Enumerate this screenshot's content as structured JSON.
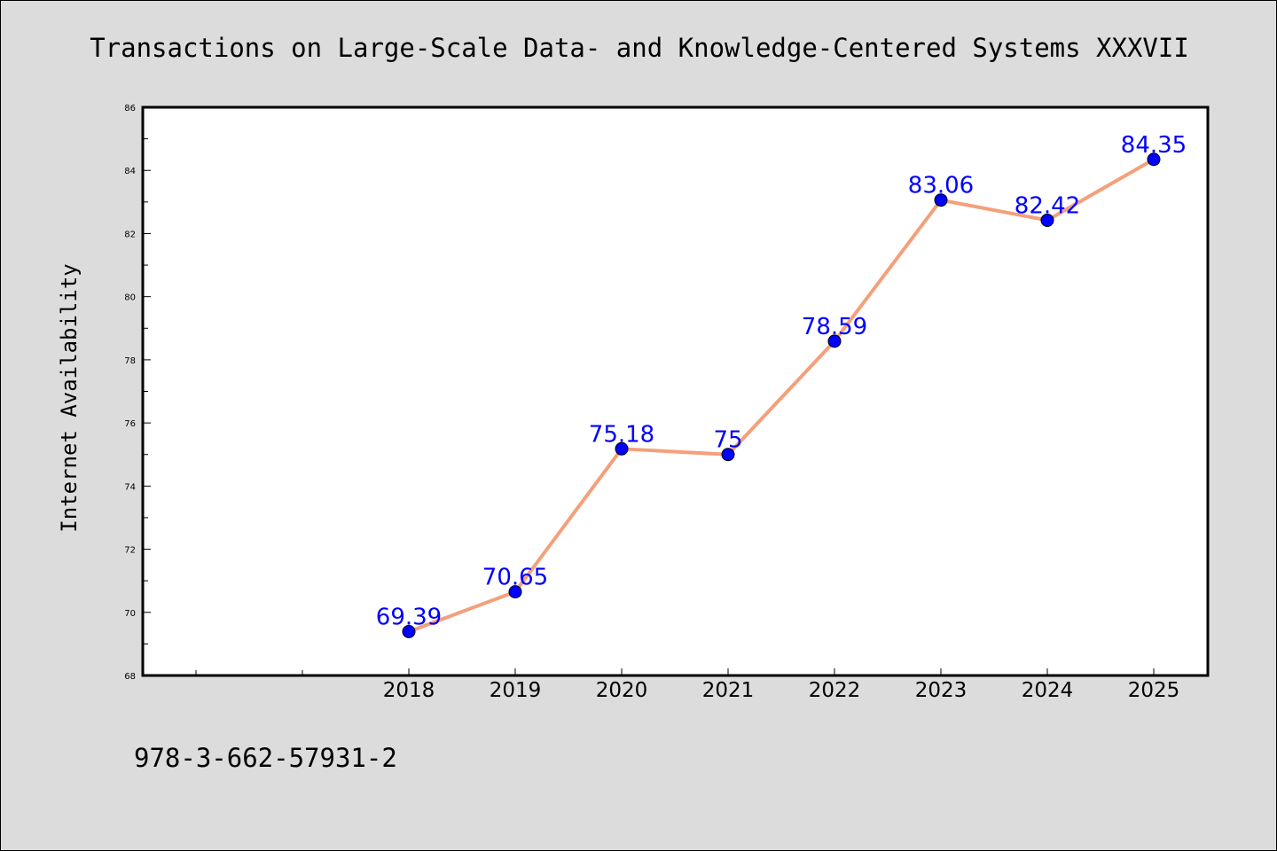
{
  "chart_data": {
    "type": "line",
    "title": "Transactions on Large-Scale Data- and Knowledge-Centered Systems XXXVII",
    "xlabel": "",
    "ylabel": "Internet Availability",
    "categories": [
      "2018",
      "2019",
      "2020",
      "2021",
      "2022",
      "2023",
      "2024",
      "2025"
    ],
    "series": [
      {
        "values": [
          69.39,
          70.65,
          75.18,
          75,
          78.59,
          83.06,
          82.42,
          84.35
        ],
        "data_labels": [
          "69.39",
          "70.65",
          "75.18",
          "75",
          "78.59",
          "83.06",
          "82.42",
          "84.35"
        ]
      }
    ],
    "ylim": [
      68,
      86
    ],
    "yticks": [
      68,
      70,
      72,
      74,
      76,
      78,
      80,
      82,
      84,
      86
    ],
    "ytick_labels": [
      "68",
      "70",
      "72",
      "74",
      "76",
      "78",
      "80",
      "82",
      "84",
      "86"
    ],
    "grid": false,
    "legend": "none",
    "colors": {
      "line": "#f4a07a",
      "marker": "#0000ff",
      "data_label": "#0000ff",
      "background": "#dcdcdc",
      "plot_background": "#ffffff"
    }
  },
  "footer": {
    "isbn": "978-3-662-57931-2"
  }
}
